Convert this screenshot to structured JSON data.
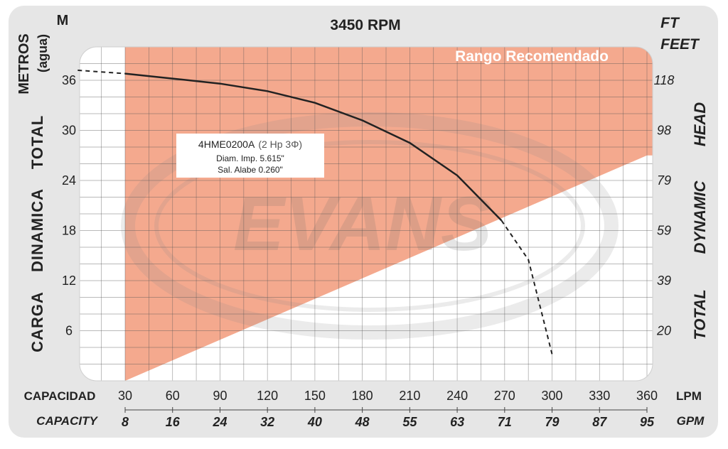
{
  "chart_data": {
    "type": "line",
    "title": "3450 RPM",
    "left_axis": {
      "unit": "M",
      "label_lines": [
        "METROS",
        "(agua)"
      ],
      "title_words": [
        "CARGA",
        "DINAMICA",
        "TOTAL"
      ],
      "ticks": [
        6,
        12,
        18,
        24,
        30,
        36
      ],
      "range": [
        0,
        40
      ]
    },
    "right_axis": {
      "unit_lines": [
        "FT",
        "FEET"
      ],
      "title_words": [
        "TOTAL",
        "DYNAMIC",
        "HEAD"
      ],
      "ticks": [
        "20",
        "39",
        "59",
        "79",
        "98",
        "118"
      ]
    },
    "x_axis": {
      "label": "CAPACIDAD",
      "unit": "LPM",
      "ticks": [
        30,
        60,
        90,
        120,
        150,
        180,
        210,
        240,
        270,
        300,
        330,
        360
      ],
      "range": [
        0,
        360
      ]
    },
    "x2_axis": {
      "label": "CAPACITY",
      "unit": "GPM",
      "ticks": [
        "8",
        "16",
        "24",
        "32",
        "40",
        "48",
        "55",
        "63",
        "71",
        "79",
        "87",
        "95"
      ]
    },
    "recommended_range": {
      "label": "Rango Recomendado",
      "x_range": [
        30,
        360
      ],
      "lower_boundary": [
        [
          30,
          0
        ],
        [
          360,
          27
        ]
      ],
      "color": "#f4a98e"
    },
    "series": [
      {
        "name": "4HME0200A",
        "points": [
          [
            0,
            37.2
          ],
          [
            30,
            36.8
          ],
          [
            60,
            36.2
          ],
          [
            90,
            35.6
          ],
          [
            120,
            34.7
          ],
          [
            150,
            33.3
          ],
          [
            180,
            31.2
          ],
          [
            210,
            28.5
          ],
          [
            240,
            24.6
          ],
          [
            268,
            19.2
          ],
          [
            285,
            14.5
          ],
          [
            300,
            3.2
          ]
        ],
        "solid_x_range": [
          30,
          268
        ],
        "color": "#222222"
      }
    ],
    "annotation": {
      "model": "4HME0200A",
      "power": "(2 Hp 3Φ)",
      "line2": "Diam. Imp. 5.615\"",
      "line3": "Sal. Alabe 0.260\""
    },
    "watermark": "EVANS",
    "grid": true
  }
}
